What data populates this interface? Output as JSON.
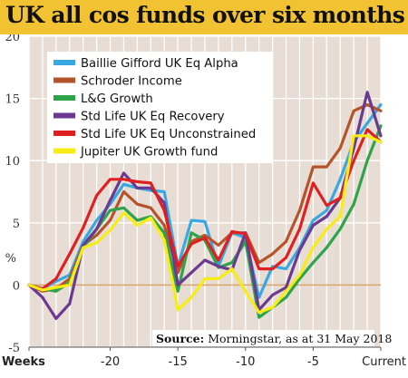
{
  "title": "UK all cos funds over six months",
  "source": {
    "label": "Source:",
    "text": "Morningstar, as at 31 May 2018"
  },
  "colors": {
    "title_bg": "#f1c232",
    "plot_bg": "#e8ddd4",
    "zero_line": "#d9a46a"
  },
  "chart_data": {
    "type": "line",
    "ylabel": "%",
    "xlabel": "Weeks",
    "ylim": [
      -5,
      20
    ],
    "yticks": [
      -5,
      0,
      5,
      10,
      15,
      20
    ],
    "xlim": [
      -26,
      0
    ],
    "xticks": [
      {
        "value": -26,
        "label": "Weeks"
      },
      {
        "value": -20,
        "label": "-20"
      },
      {
        "value": -15,
        "label": "-15"
      },
      {
        "value": -10,
        "label": "-10"
      },
      {
        "value": -5,
        "label": "-5"
      },
      {
        "value": 0,
        "label": "Current"
      }
    ],
    "grid": true,
    "legend_position": "top-left",
    "x": [
      -26,
      -25,
      -24,
      -23,
      -22,
      -21,
      -20,
      -19,
      -18,
      -17,
      -16,
      -15,
      -14,
      -13,
      -12,
      -11,
      -10,
      -9,
      -8,
      -7,
      -6,
      -5,
      -4,
      -3,
      -2,
      -1,
      0
    ],
    "series": [
      {
        "name": "Baillie Gifford UK Eq Alpha",
        "color": "#3aa8e0",
        "values": [
          0,
          -0.3,
          0.3,
          0.8,
          3.5,
          5.2,
          6.5,
          8.1,
          7.8,
          7.6,
          7.5,
          1.5,
          5.2,
          5.1,
          1.5,
          4.2,
          3.8,
          -1.0,
          1.5,
          1.3,
          3.0,
          5.2,
          6.0,
          8.5,
          11.5,
          13.0,
          14.5
        ]
      },
      {
        "name": "Schroder Income",
        "color": "#b5532b",
        "values": [
          0,
          -0.5,
          -0.3,
          0.5,
          3.2,
          4.0,
          5.2,
          7.5,
          6.5,
          6.2,
          4.8,
          1.0,
          3.5,
          4.0,
          3.2,
          4.2,
          4.2,
          1.8,
          2.5,
          3.5,
          6.0,
          9.5,
          9.5,
          11.0,
          14.0,
          14.5,
          14.0
        ]
      },
      {
        "name": "L&G Growth",
        "color": "#2ea44a",
        "values": [
          0,
          -0.3,
          -0.5,
          0.2,
          3.0,
          4.5,
          6.0,
          6.2,
          5.2,
          5.5,
          4.2,
          -0.5,
          4.2,
          3.6,
          1.4,
          1.8,
          3.5,
          -2.6,
          -1.8,
          -1.0,
          0.5,
          1.8,
          3.0,
          4.5,
          6.5,
          10.0,
          12.8
        ]
      },
      {
        "name": "Std Life UK Eq Recovery",
        "color": "#6b3a90",
        "values": [
          0,
          -1.0,
          -2.7,
          -1.5,
          3.2,
          4.5,
          6.8,
          9.0,
          7.8,
          7.8,
          6.6,
          0.0,
          1.0,
          2.0,
          1.5,
          1.2,
          4.2,
          -2.0,
          -0.8,
          -0.2,
          2.8,
          4.8,
          5.5,
          7.0,
          11.0,
          15.5,
          12.0
        ]
      },
      {
        "name": "Std Life UK Eq Unconstrained",
        "color": "#e02020",
        "values": [
          0,
          -0.3,
          0.5,
          2.5,
          4.6,
          7.2,
          8.5,
          8.5,
          8.3,
          8.2,
          6.0,
          1.5,
          3.3,
          3.8,
          2.0,
          4.3,
          4.1,
          1.3,
          1.3,
          2.2,
          4.5,
          8.2,
          6.4,
          7.0,
          10.0,
          12.5,
          11.5
        ]
      },
      {
        "name": "Jupiter UK Growth fund",
        "color": "#f7ec16",
        "values": [
          0,
          -0.4,
          -0.2,
          0.0,
          3.0,
          3.4,
          4.4,
          5.8,
          4.8,
          5.4,
          3.6,
          -2.0,
          -1.0,
          0.5,
          0.5,
          1.3,
          -0.5,
          -2.2,
          -1.8,
          -0.5,
          0.8,
          3.0,
          4.5,
          5.5,
          12.0,
          12.0,
          11.5
        ]
      }
    ]
  }
}
